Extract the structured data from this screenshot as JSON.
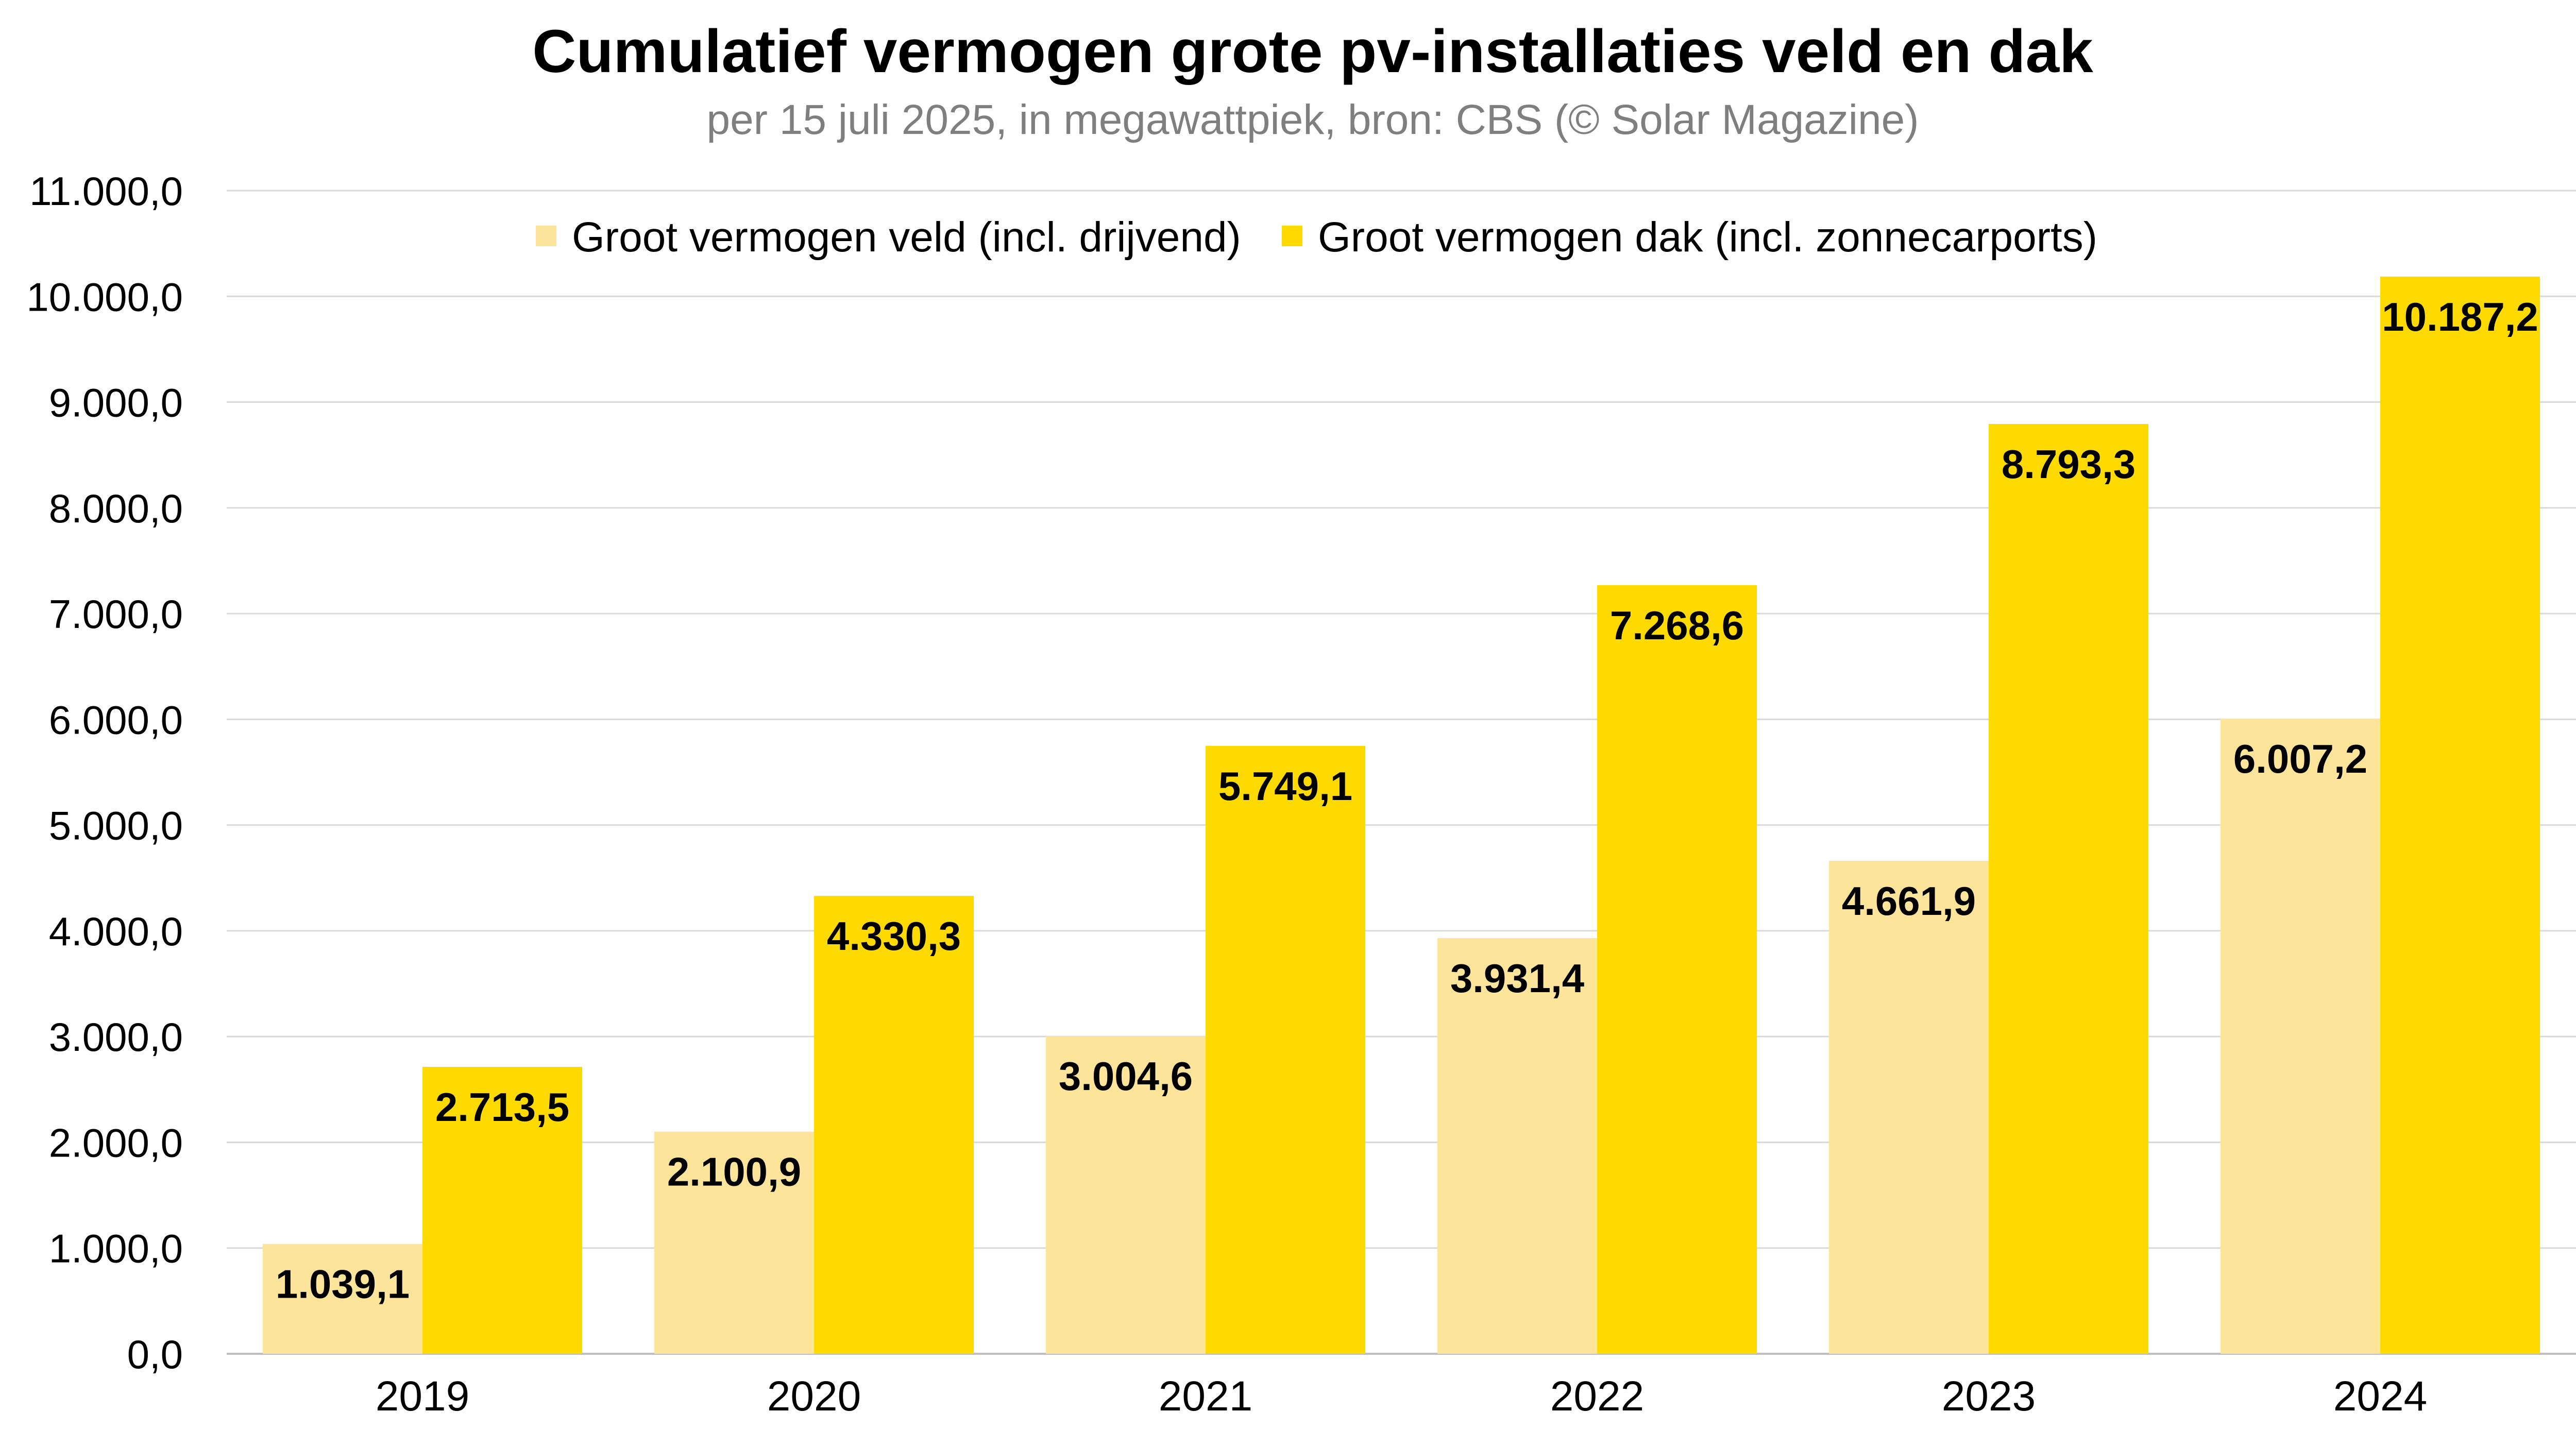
{
  "chart_data": {
    "type": "bar",
    "title": "Cumulatief vermogen grote pv-installaties veld en dak",
    "subtitle": "per 15 juli 2025, in megawattpiek, bron: CBS (© Solar Magazine)",
    "categories": [
      "2019",
      "2020",
      "2021",
      "2022",
      "2023",
      "2024"
    ],
    "series": [
      {
        "name": "Groot vermogen veld (incl. drijvend)",
        "color": "#fce59a",
        "values": [
          1039.1,
          2100.9,
          3004.6,
          3931.4,
          4661.9,
          6007.2
        ],
        "labels": [
          "1.039,1",
          "2.100,9",
          "3.004,6",
          "3.931,4",
          "4.661,9",
          "6.007,2"
        ]
      },
      {
        "name": "Groot vermogen dak (incl. zonnecarports)",
        "color": "#ffda00",
        "values": [
          2713.5,
          4330.3,
          5749.1,
          7268.6,
          8793.3,
          10187.2
        ],
        "labels": [
          "2.713,5",
          "4.330,3",
          "5.749,1",
          "7.268,6",
          "8.793,3",
          "10.187,2"
        ]
      }
    ],
    "ylim": [
      0,
      11000
    ],
    "yticks": [
      0,
      1000,
      2000,
      3000,
      4000,
      5000,
      6000,
      7000,
      8000,
      9000,
      10000,
      11000
    ],
    "ytick_labels": [
      "0,0",
      "1.000,0",
      "2.000,0",
      "3.000,0",
      "4.000,0",
      "5.000,0",
      "6.000,0",
      "7.000,0",
      "8.000,0",
      "9.000,0",
      "10.000,0",
      "11.000,0"
    ],
    "xlabel": "",
    "ylabel": "",
    "grid": true,
    "legend_position": "top-center"
  }
}
